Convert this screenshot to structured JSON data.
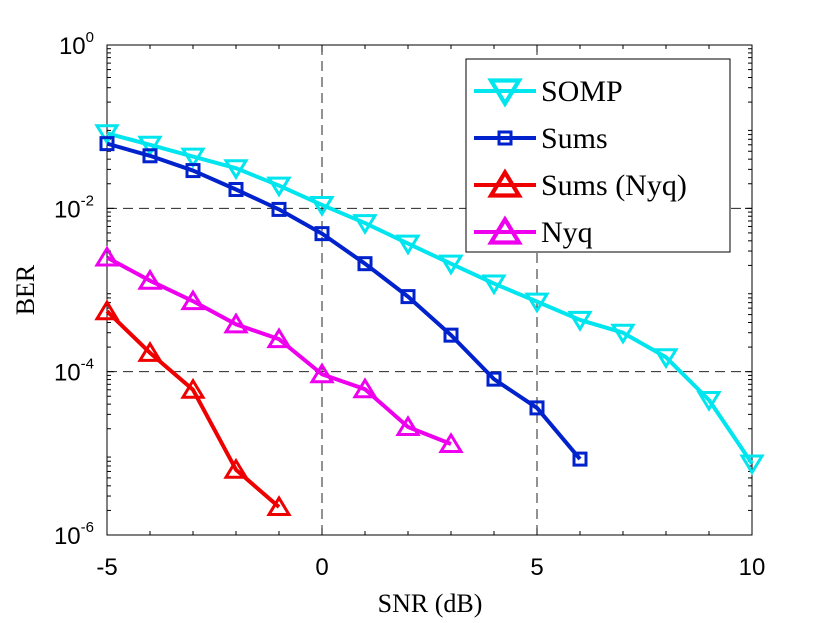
{
  "chart_data": {
    "type": "line",
    "xlabel": "SNR (dB)",
    "ylabel": "BER",
    "xlim": [
      -5,
      10
    ],
    "ylim": [
      1e-06,
      1
    ],
    "yscale": "log",
    "grid": "dashed, major only",
    "x_ticks": [
      "-5",
      "0",
      "5",
      "10"
    ],
    "y_ticks": [
      {
        "base": "10",
        "exp": "-6"
      },
      {
        "base": "10",
        "exp": "-4"
      },
      {
        "base": "10",
        "exp": "-2"
      },
      {
        "base": "10",
        "exp": "0"
      }
    ],
    "legend_position": "top-right",
    "series": [
      {
        "name": "SOMP",
        "color": "#00e5ee",
        "marker": "triangle-down",
        "x": [
          -5,
          -4,
          -3,
          -2,
          -1,
          0,
          1,
          2,
          3,
          4,
          5,
          6,
          7,
          8,
          9,
          10
        ],
        "y": [
          0.083,
          0.06,
          0.043,
          0.031,
          0.019,
          0.011,
          0.0066,
          0.0037,
          0.0021,
          0.0012,
          0.00072,
          0.00043,
          0.0003,
          0.00015,
          4.5e-05,
          7.5e-06
        ]
      },
      {
        "name": "Sums",
        "color": "#0022cc",
        "marker": "square",
        "x": [
          -5,
          -4,
          -3,
          -2,
          -1,
          0,
          1,
          2,
          3,
          4,
          5,
          6
        ],
        "y": [
          0.062,
          0.044,
          0.029,
          0.017,
          0.0097,
          0.0049,
          0.0021,
          0.00083,
          0.00028,
          8.1e-05,
          3.6e-05,
          8.5e-06
        ]
      },
      {
        "name": "Sums (Nyq)",
        "color": "#ee0000",
        "marker": "triangle-up",
        "x": [
          -5,
          -4,
          -3,
          -2,
          -1
        ],
        "y": [
          0.00055,
          0.00017,
          6e-05,
          6.3e-06,
          2.2e-06
        ]
      },
      {
        "name": "Nyq",
        "color": "#ee00ee",
        "marker": "triangle-up",
        "x": [
          -5,
          -4,
          -3,
          -2,
          -1,
          0,
          1,
          2,
          3
        ],
        "y": [
          0.0025,
          0.0013,
          0.00073,
          0.00038,
          0.00025,
          9.3e-05,
          6.1e-05,
          2.1e-05,
          1.3e-05
        ]
      }
    ]
  }
}
